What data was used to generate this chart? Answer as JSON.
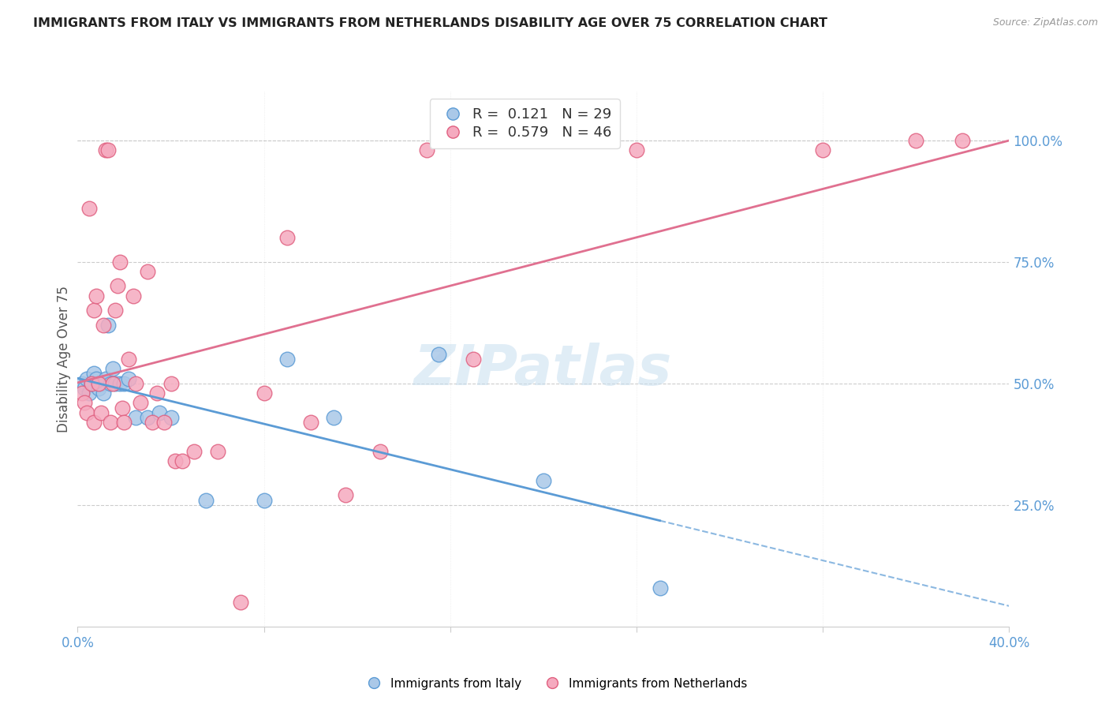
{
  "title": "IMMIGRANTS FROM ITALY VS IMMIGRANTS FROM NETHERLANDS DISABILITY AGE OVER 75 CORRELATION CHART",
  "source": "Source: ZipAtlas.com",
  "ylabel": "Disability Age Over 75",
  "right_yticks": [
    "100.0%",
    "75.0%",
    "50.0%",
    "25.0%"
  ],
  "right_ytick_vals": [
    1.0,
    0.75,
    0.5,
    0.25
  ],
  "xlim": [
    0.0,
    0.4
  ],
  "ylim": [
    0.0,
    1.1
  ],
  "italy_R": 0.121,
  "italy_N": 29,
  "netherlands_R": 0.579,
  "netherlands_N": 46,
  "italy_fill": "#aac8e8",
  "italy_edge": "#5b9bd5",
  "neth_fill": "#f5aabf",
  "neth_edge": "#e06080",
  "trend_italy_color": "#5b9bd5",
  "trend_neth_color": "#e07090",
  "watermark": "ZIPatlas",
  "background_color": "#ffffff",
  "grid_color": "#cccccc",
  "italy_x": [
    0.002,
    0.003,
    0.004,
    0.005,
    0.006,
    0.007,
    0.008,
    0.009,
    0.01,
    0.011,
    0.012,
    0.013,
    0.014,
    0.015,
    0.016,
    0.018,
    0.02,
    0.022,
    0.025,
    0.03,
    0.035,
    0.04,
    0.055,
    0.08,
    0.09,
    0.11,
    0.155,
    0.2,
    0.25
  ],
  "italy_y": [
    0.5,
    0.49,
    0.51,
    0.48,
    0.5,
    0.52,
    0.51,
    0.49,
    0.5,
    0.48,
    0.51,
    0.62,
    0.5,
    0.53,
    0.5,
    0.5,
    0.5,
    0.51,
    0.43,
    0.43,
    0.44,
    0.43,
    0.26,
    0.26,
    0.55,
    0.43,
    0.56,
    0.3,
    0.08
  ],
  "neth_x": [
    0.002,
    0.003,
    0.004,
    0.005,
    0.006,
    0.007,
    0.007,
    0.008,
    0.009,
    0.01,
    0.011,
    0.012,
    0.013,
    0.014,
    0.015,
    0.016,
    0.017,
    0.018,
    0.019,
    0.02,
    0.022,
    0.024,
    0.025,
    0.027,
    0.03,
    0.032,
    0.034,
    0.037,
    0.04,
    0.042,
    0.045,
    0.05,
    0.06,
    0.07,
    0.08,
    0.09,
    0.1,
    0.115,
    0.13,
    0.15,
    0.17,
    0.2,
    0.24,
    0.32,
    0.36,
    0.38
  ],
  "neth_y": [
    0.48,
    0.46,
    0.44,
    0.86,
    0.5,
    0.42,
    0.65,
    0.68,
    0.5,
    0.44,
    0.62,
    0.98,
    0.98,
    0.42,
    0.5,
    0.65,
    0.7,
    0.75,
    0.45,
    0.42,
    0.55,
    0.68,
    0.5,
    0.46,
    0.73,
    0.42,
    0.48,
    0.42,
    0.5,
    0.34,
    0.34,
    0.36,
    0.36,
    0.05,
    0.48,
    0.8,
    0.42,
    0.27,
    0.36,
    0.98,
    0.55,
    1.0,
    0.98,
    0.98,
    1.0,
    1.0
  ]
}
